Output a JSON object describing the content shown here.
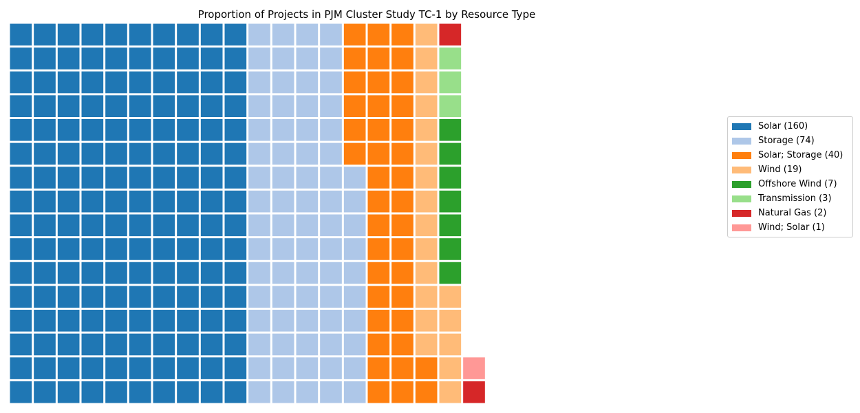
{
  "chart_data": {
    "type": "waffle",
    "title": "Proportion of Projects in PJM Cluster Study TC-1 by Resource Type",
    "rows": 16,
    "columns": 30,
    "fill_order": "column-major, bottom to top, left to right",
    "legend_position": "right",
    "categories": [
      {
        "name": "Solar",
        "count": 160,
        "legend": "Solar (160)",
        "color": "#1f77b4"
      },
      {
        "name": "Storage",
        "count": 74,
        "legend": "Storage (74)",
        "color": "#aec7e8"
      },
      {
        "name": "Solar; Storage",
        "count": 40,
        "legend": "Solar; Storage (40)",
        "color": "#ff7f0e"
      },
      {
        "name": "Wind",
        "count": 19,
        "legend": "Wind (19)",
        "color": "#ffbb78"
      },
      {
        "name": "Offshore Wind",
        "count": 7,
        "legend": "Offshore Wind (7)",
        "color": "#2ca02c"
      },
      {
        "name": "Transmission",
        "count": 3,
        "legend": "Transmission (3)",
        "color": "#98df8a"
      },
      {
        "name": "Natural Gas",
        "count": 2,
        "legend": "Natural Gas (2)",
        "color": "#d62728"
      },
      {
        "name": "Wind; Solar",
        "count": 1,
        "legend": "Wind; Solar (1)",
        "color": "#ff9896"
      }
    ]
  }
}
